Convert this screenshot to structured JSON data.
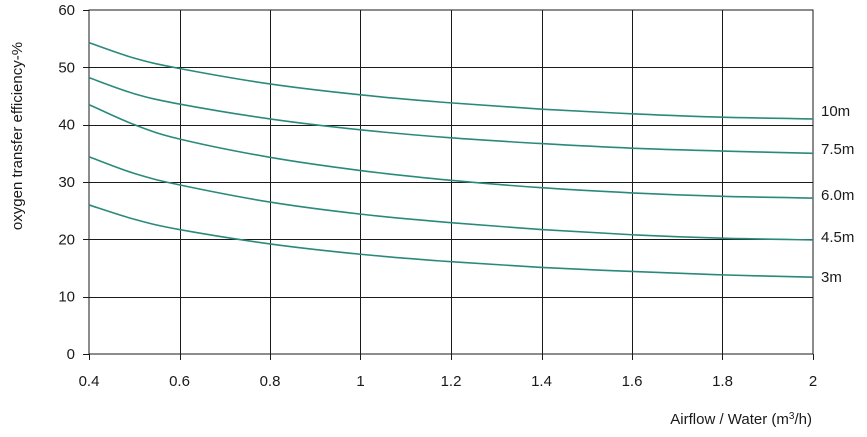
{
  "chart_data": {
    "type": "line",
    "title": "",
    "xlabel": "Airflow / Water (m",
    "xlabel_sup": "3",
    "xlabel_suffix": "/h)",
    "ylabel": "oxygen transfer efficiency-%",
    "xlim": [
      0.4,
      2
    ],
    "ylim": [
      0,
      60
    ],
    "xticks": [
      0.4,
      0.6,
      0.8,
      1,
      1.2,
      1.4,
      1.6,
      1.8,
      2
    ],
    "xtick_labels": [
      "0.4",
      "0.6",
      "0.8",
      "1",
      "1.2",
      "1.4",
      "1.6",
      "1.8",
      "2"
    ],
    "yticks": [
      0,
      10,
      20,
      30,
      40,
      50,
      60
    ],
    "ytick_labels": [
      "0",
      "10",
      "20",
      "30",
      "40",
      "50",
      "60"
    ],
    "grid": true,
    "line_color": "#2a8a7a",
    "series": [
      {
        "name": "10m",
        "x": [
          0.4,
          0.5,
          0.6,
          0.8,
          1.0,
          1.2,
          1.4,
          1.6,
          1.8,
          2.0
        ],
        "y": [
          54.3,
          51.6,
          49.8,
          47.1,
          45.2,
          43.8,
          42.7,
          41.9,
          41.3,
          41.0
        ]
      },
      {
        "name": "7.5m",
        "x": [
          0.4,
          0.5,
          0.6,
          0.8,
          1.0,
          1.2,
          1.4,
          1.6,
          1.8,
          2.0
        ],
        "y": [
          48.2,
          45.4,
          43.6,
          41.0,
          39.1,
          37.7,
          36.7,
          35.9,
          35.4,
          35.0
        ]
      },
      {
        "name": "6.0m",
        "x": [
          0.4,
          0.5,
          0.6,
          0.8,
          1.0,
          1.2,
          1.4,
          1.6,
          1.8,
          2.0
        ],
        "y": [
          43.5,
          40.0,
          37.5,
          34.3,
          32.0,
          30.3,
          29.0,
          28.1,
          27.5,
          27.2
        ]
      },
      {
        "name": "4.5m",
        "x": [
          0.4,
          0.5,
          0.6,
          0.8,
          1.0,
          1.2,
          1.4,
          1.6,
          1.8,
          2.0
        ],
        "y": [
          34.4,
          31.5,
          29.5,
          26.5,
          24.4,
          22.9,
          21.7,
          20.8,
          20.2,
          19.9
        ]
      },
      {
        "name": "3m",
        "x": [
          0.4,
          0.5,
          0.6,
          0.8,
          1.0,
          1.2,
          1.4,
          1.6,
          1.8,
          2.0
        ],
        "y": [
          26.0,
          23.5,
          21.7,
          19.2,
          17.4,
          16.1,
          15.1,
          14.4,
          13.8,
          13.4
        ]
      }
    ]
  }
}
